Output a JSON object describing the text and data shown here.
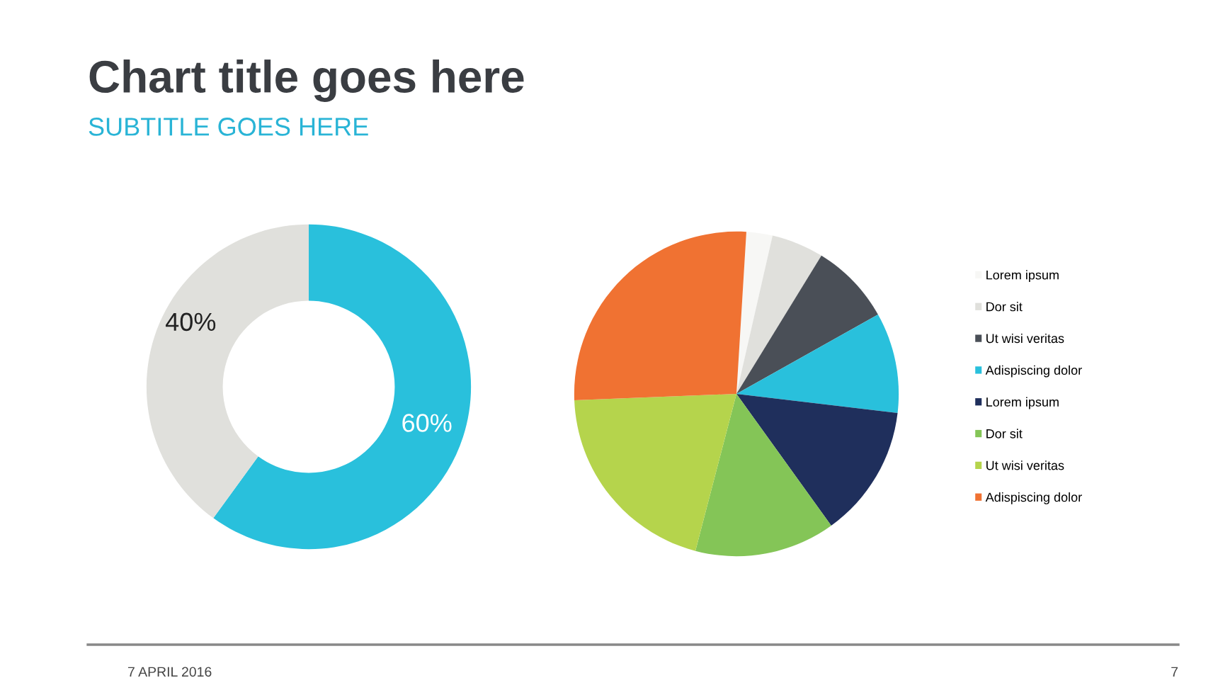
{
  "chart_data": [
    {
      "type": "donut",
      "title": "Chart title goes here",
      "subtitle": "SUBTITLE GOES HERE",
      "categories": [
        null,
        null
      ],
      "values": [
        60,
        40
      ],
      "colors": [
        "#29c0dc",
        "#e0e0dc"
      ],
      "value_labels": [
        "60%",
        "40%"
      ],
      "legend": false,
      "annotations": [
        "7 APRIL 2016",
        "7"
      ]
    },
    {
      "type": "pie",
      "categories": [
        "Lorem ipsum",
        "Dor sit",
        "Ut wisi veritas",
        "Adispiscing dolor",
        "Lorem ipsum",
        "Dor sit",
        "Ut wisi veritas",
        "Adispiscing dolor"
      ],
      "values": [
        2.6,
        5.2,
        8.1,
        10,
        13.2,
        14,
        20.3,
        26.6
      ],
      "colors": [
        "#f7f7f5",
        "#e0e0dc",
        "#4a4f57",
        "#29c0dc",
        "#1f2f5c",
        "#84c557",
        "#b5d44c",
        "#f07232"
      ],
      "legend": "right"
    }
  ]
}
